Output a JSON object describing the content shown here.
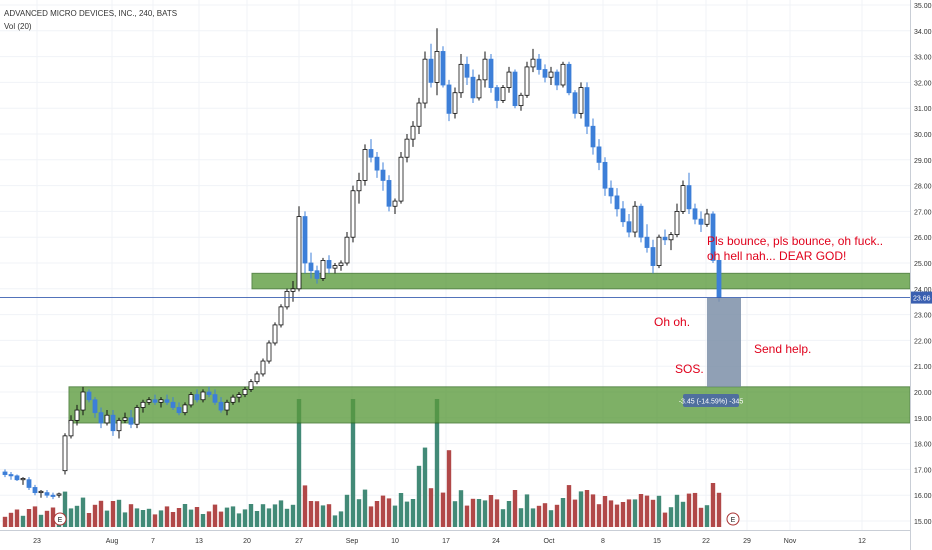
{
  "header": {
    "title": "ADVANCED MICRO DEVICES, INC., 240, BATS",
    "indicator": "Vol (20)"
  },
  "colors": {
    "up": "#ffffff",
    "up_outline": "#111111",
    "down": "#3d7fd8",
    "vol_up": "#2e7d68",
    "vol_down": "#a93434",
    "zone_fill": "#5a9a3c",
    "price_line": "#3a5fb0",
    "annotation": "#e0001b",
    "measure_fill": "#7c8fa8",
    "measure_label_bg": "#4f6f9e"
  },
  "annotations": {
    "bounce_line1": "Pls bounce, pls bounce, oh fuck..",
    "bounce_line2": "oh hell nah... DEAR GOD!",
    "oh_oh": "Oh oh.",
    "send_help": "Send help.",
    "sos": "SOS.",
    "measure_label": "-3.45 (-14.59%) -345"
  },
  "chart_data": {
    "type": "candlestick",
    "title": "ADVANCED MICRO DEVICES, INC., 240, BATS",
    "ylim": [
      14.6,
      35.1
    ],
    "y_ticks": [
      "15.00",
      "16.00",
      "17.00",
      "18.00",
      "19.00",
      "20.00",
      "21.00",
      "22.00",
      "23.00",
      "24.00",
      "25.00",
      "26.00",
      "27.00",
      "28.00",
      "29.00",
      "30.00",
      "31.00",
      "32.00",
      "33.00",
      "34.00",
      "35.00"
    ],
    "x_ticks": [
      "23",
      "Aug",
      "7",
      "13",
      "20",
      "27",
      "Sep",
      "10",
      "17",
      "24",
      "Oct",
      "8",
      "15",
      "22",
      "29",
      "Nov",
      "12"
    ],
    "last_price": "23.66",
    "earnings_markers": [
      "E",
      "E"
    ],
    "support_zones": [
      {
        "low": 24.0,
        "high": 24.6
      },
      {
        "low": 18.8,
        "high": 20.2
      }
    ],
    "measure": {
      "from": 23.66,
      "to": 20.2,
      "label": "-3.45 (-14.59%) -345"
    },
    "candles": [
      [
        16.9,
        17.0,
        16.7,
        16.8
      ],
      [
        16.8,
        16.9,
        16.6,
        16.75
      ],
      [
        16.75,
        16.8,
        16.55,
        16.6
      ],
      [
        16.6,
        16.7,
        16.4,
        16.65
      ],
      [
        16.6,
        16.7,
        16.2,
        16.3
      ],
      [
        16.3,
        16.4,
        16.0,
        16.1
      ],
      [
        16.1,
        16.2,
        15.9,
        16.15
      ],
      [
        16.1,
        16.2,
        15.9,
        16.0
      ],
      [
        16.0,
        16.1,
        15.85,
        15.95
      ],
      [
        16.0,
        16.1,
        15.9,
        16.05
      ],
      [
        16.95,
        18.4,
        16.8,
        18.3
      ],
      [
        18.3,
        19.1,
        18.2,
        18.9
      ],
      [
        18.9,
        19.5,
        18.7,
        19.3
      ],
      [
        19.3,
        20.2,
        19.1,
        20.0
      ],
      [
        20.0,
        20.1,
        19.6,
        19.7
      ],
      [
        19.7,
        19.8,
        19.0,
        19.2
      ],
      [
        19.2,
        19.4,
        18.6,
        18.8
      ],
      [
        18.8,
        19.3,
        18.7,
        19.1
      ],
      [
        19.1,
        19.3,
        18.3,
        18.5
      ],
      [
        18.5,
        19.0,
        18.2,
        18.9
      ],
      [
        18.9,
        19.2,
        18.8,
        19.0
      ],
      [
        19.0,
        19.3,
        18.6,
        18.75
      ],
      [
        18.75,
        19.5,
        18.6,
        19.4
      ],
      [
        19.4,
        19.7,
        19.2,
        19.6
      ],
      [
        19.6,
        19.8,
        19.5,
        19.7
      ],
      [
        19.7,
        19.9,
        19.5,
        19.6
      ],
      [
        19.6,
        19.8,
        19.4,
        19.7
      ],
      [
        19.7,
        19.9,
        19.5,
        19.6
      ],
      [
        19.6,
        19.8,
        19.3,
        19.4
      ],
      [
        19.4,
        19.6,
        19.1,
        19.2
      ],
      [
        19.2,
        19.6,
        19.1,
        19.5
      ],
      [
        19.5,
        20.0,
        19.4,
        19.9
      ],
      [
        19.9,
        20.1,
        19.6,
        19.7
      ],
      [
        19.7,
        20.1,
        19.6,
        20.0
      ],
      [
        20.0,
        20.2,
        19.8,
        19.9
      ],
      [
        19.9,
        20.1,
        19.5,
        19.6
      ],
      [
        19.6,
        19.8,
        19.2,
        19.3
      ],
      [
        19.3,
        19.7,
        19.1,
        19.6
      ],
      [
        19.6,
        19.9,
        19.5,
        19.8
      ],
      [
        19.8,
        20.0,
        19.6,
        19.9
      ],
      [
        19.9,
        20.2,
        19.8,
        20.1
      ],
      [
        20.1,
        20.5,
        20.0,
        20.4
      ],
      [
        20.4,
        20.8,
        20.3,
        20.7
      ],
      [
        20.7,
        21.3,
        20.6,
        21.2
      ],
      [
        21.2,
        22.0,
        21.1,
        21.9
      ],
      [
        21.9,
        22.7,
        21.8,
        22.6
      ],
      [
        22.6,
        23.4,
        22.5,
        23.3
      ],
      [
        23.3,
        24.0,
        23.2,
        23.9
      ],
      [
        23.9,
        24.3,
        23.5,
        24.0
      ],
      [
        24.0,
        27.2,
        23.9,
        26.8
      ],
      [
        26.8,
        27.0,
        24.6,
        25.0
      ],
      [
        25.0,
        25.4,
        24.4,
        24.7
      ],
      [
        24.7,
        24.9,
        24.2,
        24.4
      ],
      [
        24.4,
        25.2,
        24.3,
        25.1
      ],
      [
        25.1,
        25.3,
        24.6,
        24.8
      ],
      [
        24.8,
        25.0,
        24.6,
        24.9
      ],
      [
        24.9,
        25.1,
        24.7,
        25.0
      ],
      [
        25.0,
        26.2,
        24.9,
        26.0
      ],
      [
        26.0,
        28.0,
        25.8,
        27.8
      ],
      [
        27.8,
        28.5,
        27.3,
        28.2
      ],
      [
        28.2,
        29.6,
        28.0,
        29.4
      ],
      [
        29.4,
        29.8,
        28.9,
        29.1
      ],
      [
        29.1,
        29.3,
        28.3,
        28.6
      ],
      [
        28.6,
        28.9,
        27.8,
        28.2
      ],
      [
        28.2,
        28.4,
        27.0,
        27.2
      ],
      [
        27.2,
        27.5,
        26.9,
        27.4
      ],
      [
        27.4,
        29.3,
        27.3,
        29.1
      ],
      [
        29.1,
        30.0,
        28.9,
        29.8
      ],
      [
        29.8,
        30.5,
        29.5,
        30.3
      ],
      [
        30.3,
        31.4,
        30.0,
        31.2
      ],
      [
        31.2,
        33.2,
        31.0,
        32.9
      ],
      [
        32.9,
        33.5,
        31.8,
        32.0
      ],
      [
        32.0,
        34.1,
        31.5,
        33.2
      ],
      [
        33.2,
        33.4,
        31.8,
        31.9
      ],
      [
        31.9,
        32.1,
        30.5,
        30.8
      ],
      [
        30.8,
        31.8,
        30.6,
        31.6
      ],
      [
        31.6,
        33.1,
        31.4,
        32.7
      ],
      [
        32.7,
        33.0,
        31.9,
        32.2
      ],
      [
        32.2,
        32.5,
        31.2,
        31.4
      ],
      [
        31.4,
        32.3,
        31.3,
        32.1
      ],
      [
        32.1,
        33.2,
        31.8,
        32.9
      ],
      [
        32.9,
        33.1,
        31.6,
        31.8
      ],
      [
        31.8,
        31.9,
        31.0,
        31.3
      ],
      [
        31.3,
        31.9,
        31.2,
        31.8
      ],
      [
        31.8,
        32.6,
        31.6,
        32.4
      ],
      [
        32.4,
        32.5,
        31.0,
        31.1
      ],
      [
        31.1,
        31.6,
        30.9,
        31.5
      ],
      [
        31.5,
        32.8,
        31.4,
        32.6
      ],
      [
        32.6,
        33.3,
        32.4,
        32.9
      ],
      [
        32.9,
        33.1,
        32.3,
        32.5
      ],
      [
        32.5,
        32.7,
        32.0,
        32.2
      ],
      [
        32.2,
        32.6,
        31.9,
        32.4
      ],
      [
        32.4,
        32.5,
        31.7,
        31.9
      ],
      [
        31.9,
        32.8,
        31.8,
        32.7
      ],
      [
        32.7,
        32.8,
        31.5,
        31.6
      ],
      [
        31.6,
        31.7,
        30.6,
        30.8
      ],
      [
        30.8,
        32.0,
        30.6,
        31.8
      ],
      [
        31.8,
        32.0,
        30.0,
        30.3
      ],
      [
        30.3,
        30.6,
        29.2,
        29.5
      ],
      [
        29.5,
        29.8,
        28.6,
        28.9
      ],
      [
        28.9,
        29.1,
        27.6,
        27.9
      ],
      [
        27.9,
        28.2,
        27.3,
        27.6
      ],
      [
        27.6,
        27.9,
        26.8,
        27.1
      ],
      [
        27.1,
        27.4,
        26.4,
        26.6
      ],
      [
        26.6,
        26.9,
        26.0,
        26.2
      ],
      [
        26.2,
        27.4,
        26.0,
        27.2
      ],
      [
        27.2,
        27.3,
        25.8,
        26.0
      ],
      [
        26.0,
        26.5,
        25.4,
        25.6
      ],
      [
        25.6,
        25.9,
        24.6,
        24.9
      ],
      [
        24.9,
        26.1,
        24.8,
        26.0
      ],
      [
        26.0,
        26.3,
        25.7,
        25.9
      ],
      [
        25.9,
        26.2,
        25.5,
        26.1
      ],
      [
        26.1,
        27.3,
        26.0,
        27.0
      ],
      [
        27.0,
        28.2,
        26.9,
        28.0
      ],
      [
        28.0,
        28.5,
        26.9,
        27.1
      ],
      [
        27.1,
        27.3,
        26.5,
        26.7
      ],
      [
        26.7,
        27.0,
        26.2,
        26.5
      ],
      [
        26.5,
        27.1,
        26.4,
        26.9
      ],
      [
        26.9,
        27.0,
        25.0,
        25.1
      ],
      [
        25.1,
        25.3,
        23.5,
        23.66
      ]
    ],
    "volume_colors": "per candle: up = vol_up, down = vol_down"
  }
}
